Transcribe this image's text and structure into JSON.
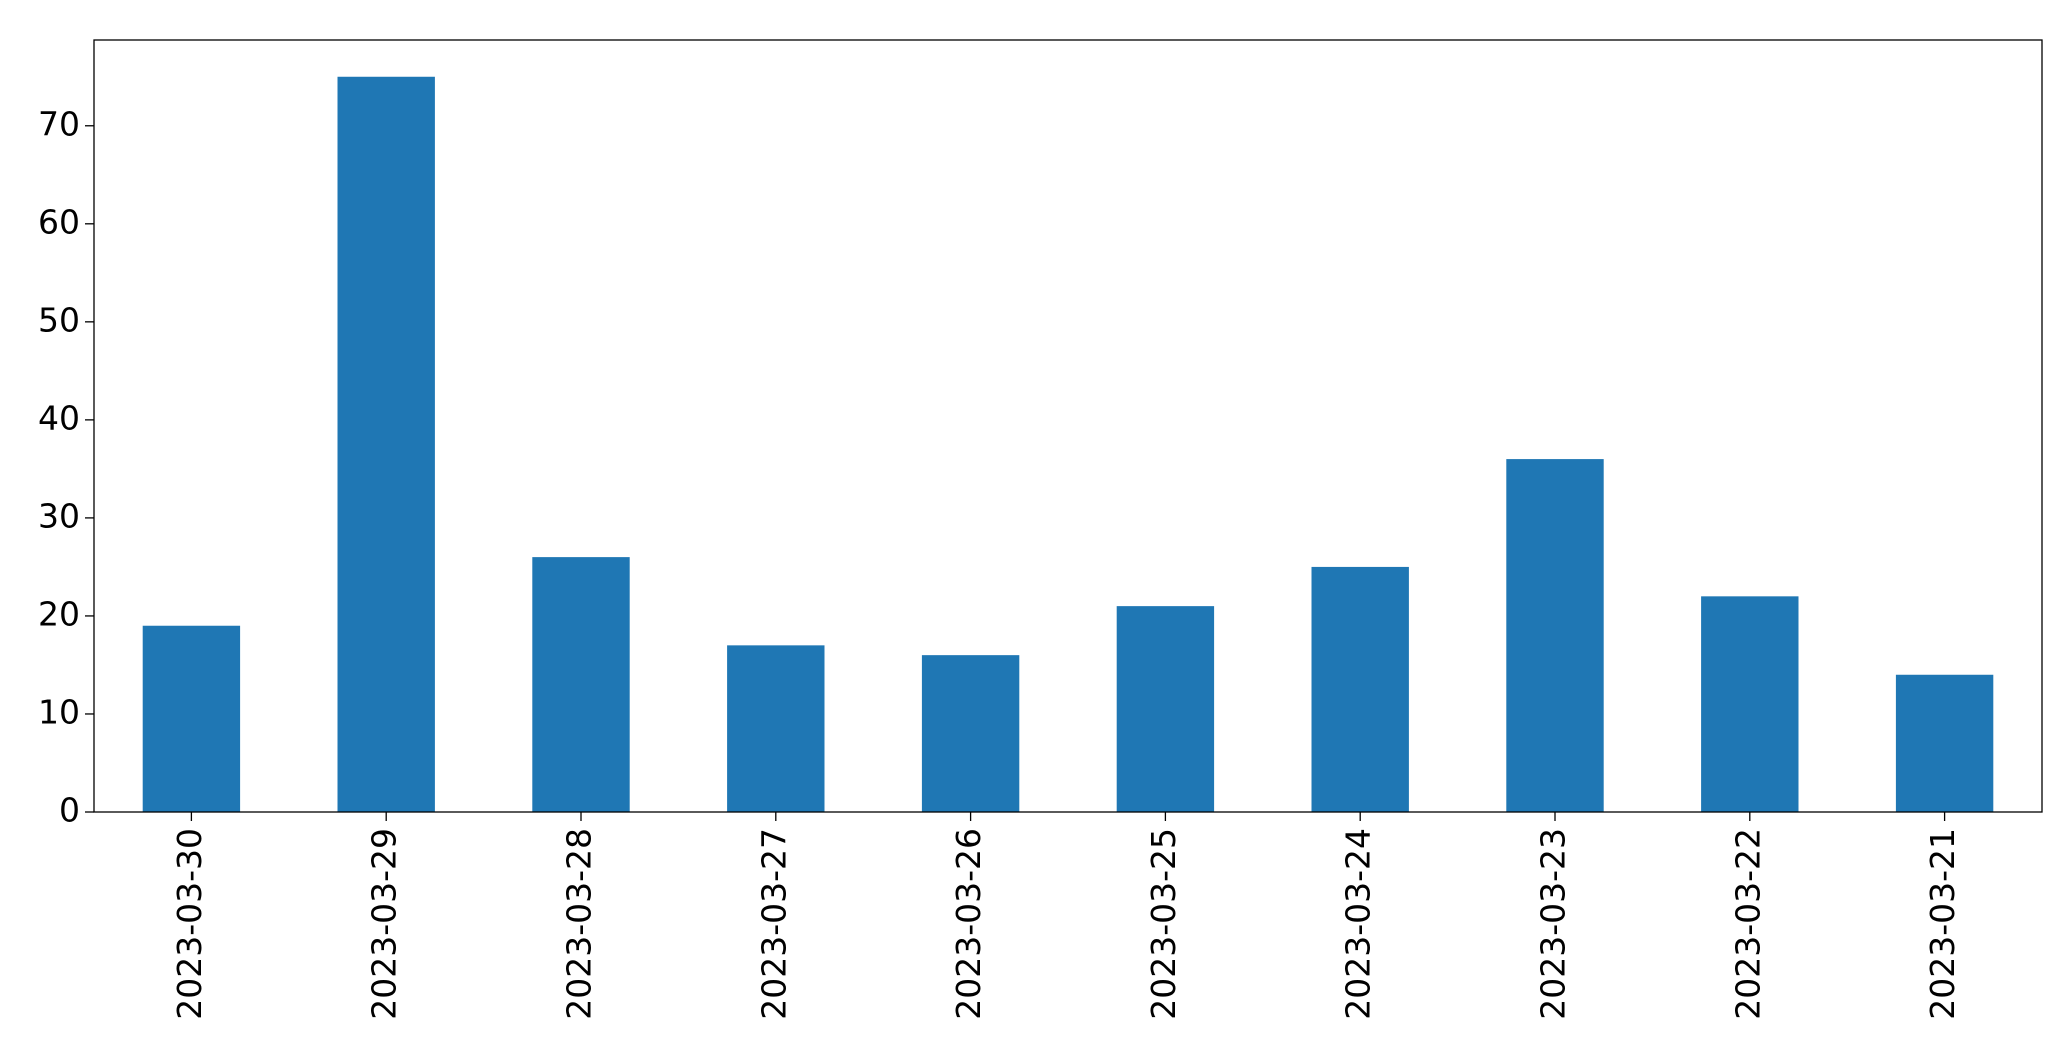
{
  "chart_data": {
    "type": "bar",
    "categories": [
      "2023-03-30",
      "2023-03-29",
      "2023-03-28",
      "2023-03-27",
      "2023-03-26",
      "2023-03-25",
      "2023-03-24",
      "2023-03-23",
      "2023-03-22",
      "2023-03-21"
    ],
    "values": [
      19,
      75,
      26,
      17,
      16,
      21,
      25,
      36,
      22,
      14
    ],
    "color": "#1f77b4",
    "ylim": [
      0,
      78.75
    ],
    "yticks": [
      0,
      10,
      20,
      30,
      40,
      50,
      60,
      70
    ],
    "grid": false
  }
}
